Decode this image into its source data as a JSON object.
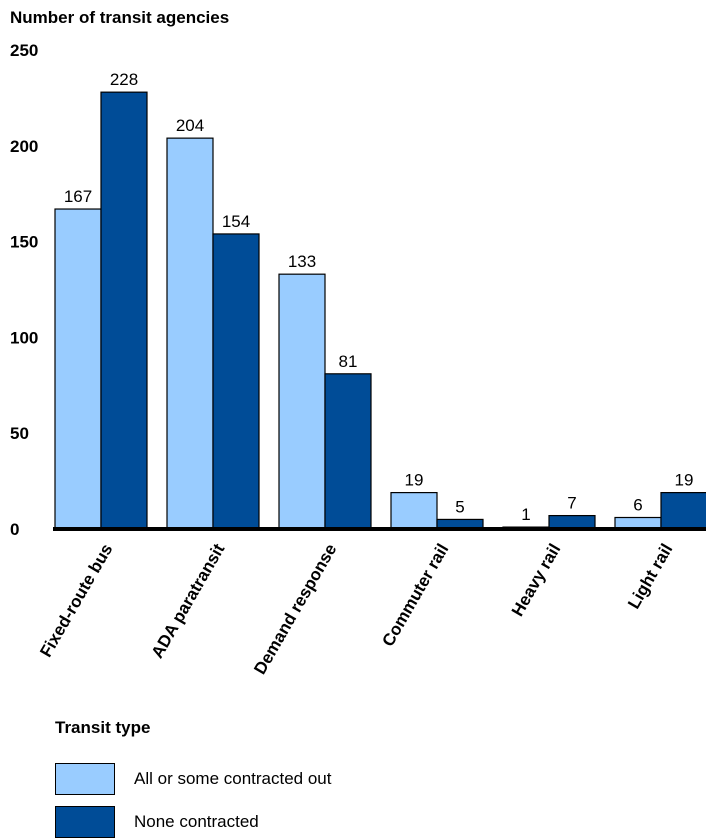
{
  "chart_data": {
    "type": "bar",
    "ylabel": "Number of transit agencies",
    "xlabel": "Transit type",
    "ylim": [
      0,
      250
    ],
    "yticks": [
      0,
      50,
      100,
      150,
      200,
      250
    ],
    "grid": false,
    "legend_position": "bottom-left",
    "categories": [
      "Fixed-route bus",
      "ADA paratransit",
      "Demand response",
      "Commuter rail",
      "Heavy rail",
      "Light rail"
    ],
    "series": [
      {
        "name": "All or some contracted out",
        "color": "#99ccff",
        "values": [
          167,
          204,
          133,
          19,
          1,
          6
        ]
      },
      {
        "name": "None contracted",
        "color": "#004c97",
        "values": [
          228,
          154,
          81,
          5,
          7,
          19
        ]
      }
    ]
  }
}
